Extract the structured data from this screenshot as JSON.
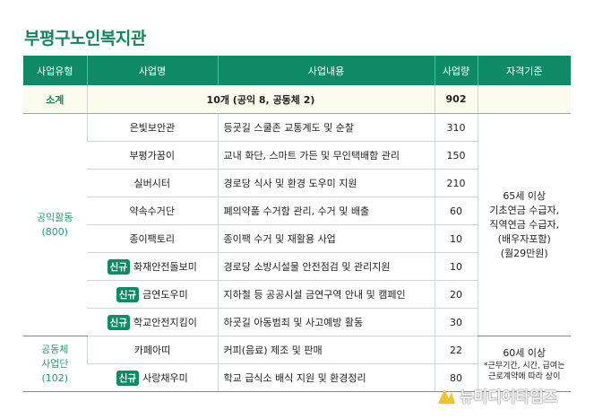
{
  "title": "부평구노인복지관",
  "headers": [
    "사업유형",
    "사업명",
    "사업내용",
    "사업량",
    "자격기준"
  ],
  "subtotal": {
    "label": "소계",
    "summary": "10개 (공익 8, 공동체 2)",
    "amount": "902"
  },
  "badge_label": "신규",
  "groups": [
    {
      "type_name": "공익활동",
      "type_count": "(800)",
      "criteria": [
        "65세 이상",
        "기초연금 수급자,",
        "직역연금 수급자,",
        "(배우자포함)",
        "(월29만원)"
      ],
      "rows": [
        {
          "name": "은빛보안관",
          "new": false,
          "content": "등굣길 스쿨존 교통계도 및 순찰",
          "amount": "310"
        },
        {
          "name": "부평가꿈이",
          "new": false,
          "content": "교내 화단, 스마트 가든 및 무인택배함 관리",
          "amount": "150"
        },
        {
          "name": "실버시터",
          "new": false,
          "content": "경로당 식사 및 환경 도우미 지원",
          "amount": "210"
        },
        {
          "name": "약속수거단",
          "new": false,
          "content": "폐의약품 수거함 관리, 수거 및 배출",
          "amount": "60"
        },
        {
          "name": "종이팩토리",
          "new": false,
          "content": "종이팩 수거 및 재활용 사업",
          "amount": "10"
        },
        {
          "name": "화재안전돌보미",
          "new": true,
          "content": "경로당 소방시설물 안전점검 및 관리지원",
          "amount": "10"
        },
        {
          "name": "금연도우미",
          "new": true,
          "content": "지하철 등 공공시설 금연구역 안내 및 캠페인",
          "amount": "20"
        },
        {
          "name": "학교안전지킴이",
          "new": true,
          "content": "하굣길 아동범죄 및 사고예방 활동",
          "amount": "30"
        }
      ]
    },
    {
      "type_name": "공동체",
      "type_name2": "사업단",
      "type_count": "(102)",
      "criteria": [
        "60세 이상",
        "*근무기간, 시간, 급여는",
        "근로계약에 따라 상이"
      ],
      "rows": [
        {
          "name": "카페아띠",
          "new": false,
          "content": "커피(음료) 제조 및 판매",
          "amount": "22"
        },
        {
          "name": "사랑채우미",
          "new": true,
          "content": "학교 급식소 배식 지원 및 환경정리",
          "amount": "80"
        }
      ]
    }
  ],
  "watermark": "뉴미디어타임즈",
  "colors": {
    "header": "#0f8a66",
    "title": "#15855a",
    "subtotal_bg": "#fbfbee",
    "watermark_logo": "#f2c230"
  }
}
